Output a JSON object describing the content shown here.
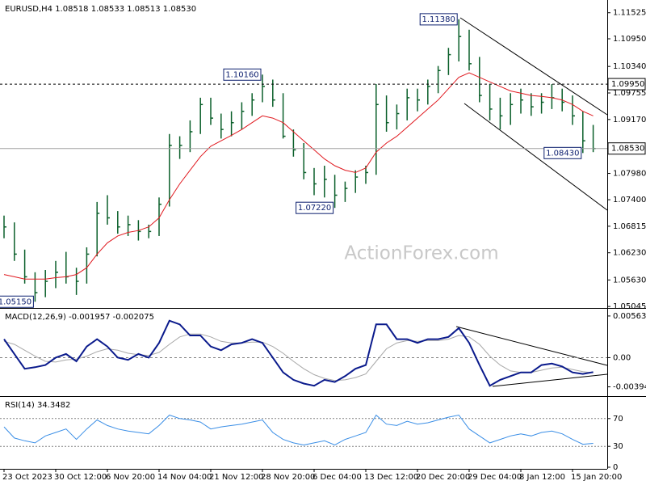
{
  "chart_data": [
    {
      "type": "ohlc",
      "title": "EURUSD,H4  1.08518 1.08533 1.08513 1.08530",
      "watermark": "ActionForex.com",
      "color": "#0a5f2a",
      "categories": [
        "23 Oct 2023",
        null,
        null,
        null,
        null,
        "30 Oct 12:00",
        null,
        null,
        null,
        null,
        "6 Nov 20:00",
        null,
        null,
        null,
        null,
        "14 Nov 04:00",
        null,
        null,
        null,
        null,
        "21 Nov 12:00",
        null,
        null,
        null,
        null,
        "28 Nov 20:00",
        null,
        null,
        null,
        null,
        "6 Dec 04:00",
        null,
        null,
        null,
        null,
        "13 Dec 12:00",
        null,
        null,
        null,
        null,
        "20 Dec 20:00",
        null,
        null,
        null,
        null,
        "29 Dec 04:00",
        null,
        null,
        null,
        null,
        "8 Jan 12:00",
        null,
        null,
        null,
        null,
        "15 Jan 20:00",
        null,
        null
      ],
      "high": [
        1.0705,
        1.069,
        1.063,
        1.058,
        1.0585,
        1.0605,
        1.0625,
        1.059,
        1.0635,
        1.0735,
        1.075,
        1.0715,
        1.0705,
        1.0695,
        1.0685,
        1.0745,
        1.0885,
        1.088,
        1.0915,
        1.0965,
        1.0965,
        1.093,
        1.0935,
        1.0955,
        1.0975,
        1.1016,
        1.1005,
        1.0975,
        1.0895,
        1.0865,
        1.081,
        1.0815,
        1.0795,
        1.078,
        1.0805,
        1.0815,
        1.0995,
        1.097,
        1.095,
        1.0985,
        1.0985,
        1.1005,
        1.1035,
        1.1075,
        1.1138,
        1.1115,
        1.1055,
        1.0995,
        1.0965,
        1.0975,
        1.0985,
        1.0975,
        1.0975,
        1.0995,
        1.0985,
        1.097,
        1.0935,
        1.0905
      ],
      "low": [
        1.0655,
        1.0605,
        1.0555,
        1.0515,
        1.0525,
        1.0545,
        1.0555,
        1.053,
        1.0555,
        1.0615,
        1.0685,
        1.0665,
        1.066,
        1.065,
        1.0655,
        1.066,
        1.0725,
        1.083,
        1.0845,
        1.0885,
        1.0905,
        1.0875,
        1.088,
        1.0895,
        1.0925,
        1.0955,
        1.0945,
        1.0875,
        1.0835,
        1.0785,
        1.075,
        1.0745,
        1.0722,
        1.0735,
        1.0755,
        1.0775,
        1.0795,
        1.089,
        1.0895,
        1.0915,
        1.0935,
        1.095,
        1.0975,
        1.1015,
        1.1045,
        1.1025,
        1.0955,
        1.0915,
        1.0895,
        1.0905,
        1.093,
        1.0925,
        1.093,
        1.094,
        1.0935,
        1.0905,
        1.0843,
        1.0845
      ],
      "close": [
        1.068,
        1.062,
        1.057,
        1.0535,
        1.056,
        1.058,
        1.057,
        1.056,
        1.062,
        1.071,
        1.07,
        1.068,
        1.0685,
        1.067,
        1.067,
        1.073,
        1.086,
        1.086,
        1.089,
        1.095,
        1.092,
        1.0895,
        1.091,
        1.0935,
        1.096,
        1.099,
        1.096,
        1.088,
        1.085,
        1.08,
        1.0775,
        1.0785,
        1.075,
        1.0765,
        1.079,
        1.08,
        1.095,
        1.091,
        1.093,
        1.0965,
        1.096,
        1.099,
        1.1025,
        1.106,
        1.11,
        1.104,
        1.097,
        1.094,
        1.0925,
        1.095,
        1.096,
        1.0945,
        1.0955,
        1.0965,
        1.0955,
        1.0925,
        1.087,
        1.0853
      ],
      "overlay": {
        "color": "#e0191f",
        "values": [
          1.0575,
          1.057,
          1.0565,
          1.0565,
          1.0565,
          1.0568,
          1.057,
          1.0575,
          1.059,
          1.062,
          1.0645,
          1.066,
          1.0668,
          1.0672,
          1.068,
          1.07,
          1.074,
          1.0775,
          1.0805,
          1.0835,
          1.0858,
          1.087,
          1.0882,
          1.0895,
          1.091,
          1.0925,
          1.092,
          1.091,
          1.089,
          1.087,
          1.085,
          1.083,
          1.0815,
          1.0805,
          1.08,
          1.081,
          1.0845,
          1.0865,
          1.088,
          1.09,
          1.092,
          1.094,
          1.096,
          1.0985,
          1.101,
          1.102,
          1.101,
          1.1,
          1.099,
          1.098,
          1.0975,
          1.097,
          1.0968,
          1.0965,
          1.096,
          1.095,
          1.0935,
          1.0925
        ]
      },
      "annotations": [
        {
          "text": "1.05150",
          "value": 1.0515,
          "bar": 3
        },
        {
          "text": "1.10160",
          "value": 1.1016,
          "bar": 25
        },
        {
          "text": "1.07220",
          "value": 1.0722,
          "bar": 32
        },
        {
          "text": "1.11380",
          "value": 1.1138,
          "bar": 44
        },
        {
          "text": "1.08430",
          "value": 1.0843,
          "bar": 56
        }
      ],
      "reference_lines": [
        {
          "value": 1.0995,
          "label": "1.09950",
          "style": "dashed"
        },
        {
          "value": 1.0853,
          "label": "1.08530",
          "style": "solid"
        }
      ],
      "ylim": [
        1.0503,
        1.1177
      ],
      "yticks": [
        1.11525,
        {
          "value": 1.1095,
          "label": "1.10950"
        },
        {
          "value": 1.1034,
          "label": "1.10340"
        },
        1.09755,
        {
          "value": 1.0917,
          "label": "1.09170"
        },
        {
          "value": 1.0798,
          "label": "1.07980"
        },
        {
          "value": 1.074,
          "label": "1.07400"
        },
        1.06815,
        {
          "value": 1.0623,
          "label": "1.06230"
        },
        {
          "value": 1.0563,
          "label": "1.05630"
        },
        1.05045
      ]
    },
    {
      "type": "macd",
      "title": "MACD(12,26,9) -0.001957 -0.002075",
      "zero_line": true,
      "series": [
        {
          "color": "#0a1a8c",
          "values": [
            0.0025,
            0.0005,
            -0.0015,
            -0.0013,
            -0.001,
            0.0,
            0.0005,
            -0.0005,
            0.0015,
            0.0025,
            0.0015,
            0.0,
            -0.0003,
            0.0005,
            0.0,
            0.002,
            0.005,
            0.0045,
            0.003,
            0.003,
            0.0015,
            0.001,
            0.0018,
            0.002,
            0.0025,
            0.002,
            0.0,
            -0.002,
            -0.003,
            -0.0035,
            -0.0038,
            -0.003,
            -0.0033,
            -0.0025,
            -0.0015,
            -0.001,
            0.0045,
            0.0045,
            0.0025,
            0.0025,
            0.002,
            0.0025,
            0.0025,
            0.0028,
            0.004,
            0.002,
            -0.001,
            -0.0038,
            -0.003,
            -0.0025,
            -0.002,
            -0.002,
            -0.001,
            -0.0008,
            -0.0012,
            -0.002,
            -0.0022,
            -0.001957
          ]
        },
        {
          "color": "#a8a8a8",
          "values": [
            0.0022,
            0.0018,
            0.001,
            0.0002,
            -0.0005,
            -0.0006,
            -0.0003,
            -0.0002,
            0.0002,
            0.0008,
            0.0012,
            0.001,
            0.0006,
            0.0004,
            0.0003,
            0.0007,
            0.0018,
            0.0028,
            0.0032,
            0.0032,
            0.0028,
            0.0022,
            0.002,
            0.002,
            0.0021,
            0.0021,
            0.0015,
            0.0006,
            -0.0005,
            -0.0015,
            -0.0023,
            -0.0028,
            -0.0031,
            -0.003,
            -0.0027,
            -0.0022,
            -0.0005,
            0.0012,
            0.002,
            0.0023,
            0.0022,
            0.0023,
            0.0023,
            0.0025,
            0.003,
            0.0028,
            0.0018,
            0.0002,
            -0.001,
            -0.0018,
            -0.002,
            -0.002,
            -0.0017,
            -0.0014,
            -0.0013,
            -0.0016,
            -0.0019,
            -0.002075
          ]
        }
      ],
      "ylim": [
        -0.00509,
        0.0065
      ],
      "yticks": [
        0.005635,
        {
          "value": 0,
          "label": "0.00"
        },
        -0.003949
      ]
    },
    {
      "type": "line",
      "title": "RSI(14) 34.3482",
      "color": "#3a8ee6",
      "values": [
        58,
        42,
        38,
        35,
        45,
        50,
        55,
        40,
        55,
        68,
        60,
        55,
        52,
        50,
        48,
        60,
        75,
        70,
        68,
        65,
        55,
        58,
        60,
        62,
        65,
        68,
        50,
        40,
        35,
        32,
        35,
        38,
        32,
        40,
        45,
        50,
        75,
        62,
        60,
        66,
        62,
        64,
        68,
        72,
        75,
        55,
        45,
        35,
        40,
        45,
        48,
        45,
        50,
        52,
        48,
        40,
        33,
        34.3482
      ],
      "levels": [
        70,
        30
      ],
      "ylim": [
        0,
        100
      ],
      "yticks": [
        70,
        30,
        0
      ]
    }
  ]
}
